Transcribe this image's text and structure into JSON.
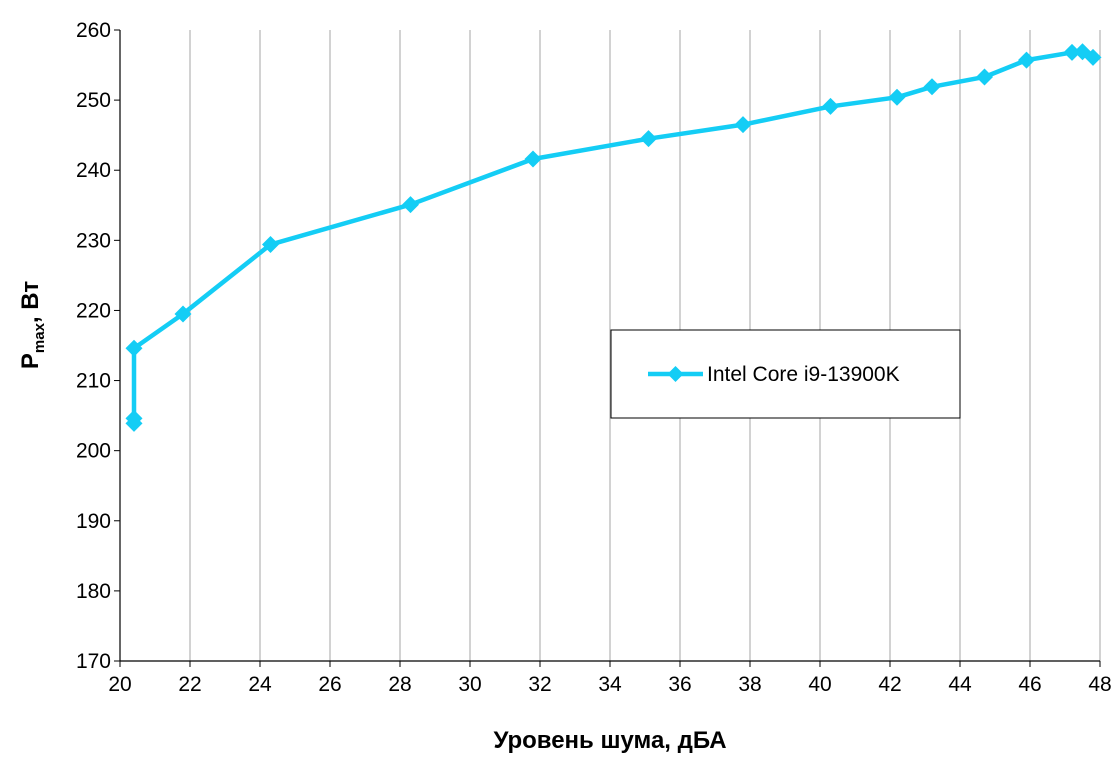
{
  "chart_data": {
    "type": "line",
    "title": "",
    "xlabel": "Уровень шума, дБА",
    "ylabel": {
      "main": "P",
      "subscript": "max",
      "suffix": ", Вт"
    },
    "xlim": [
      20,
      48
    ],
    "ylim": [
      170,
      260
    ],
    "xticks": [
      20,
      22,
      24,
      26,
      28,
      30,
      32,
      34,
      36,
      38,
      40,
      42,
      44,
      46,
      48
    ],
    "yticks": [
      170,
      180,
      190,
      200,
      210,
      220,
      230,
      240,
      250,
      260
    ],
    "grid": "vertical",
    "legend_position": "center-right",
    "series": [
      {
        "name": "Intel Core i9-13900K",
        "color": "#14cdf5",
        "marker": "diamond",
        "points": [
          [
            20.4,
            203.9
          ],
          [
            20.4,
            204.6
          ],
          [
            20.4,
            214.6
          ],
          [
            21.8,
            219.5
          ],
          [
            24.3,
            229.4
          ],
          [
            28.3,
            235.1
          ],
          [
            31.8,
            241.6
          ],
          [
            35.1,
            244.5
          ],
          [
            37.8,
            246.5
          ],
          [
            40.3,
            249.1
          ],
          [
            42.2,
            250.4
          ],
          [
            43.2,
            251.9
          ],
          [
            44.7,
            253.3
          ],
          [
            45.9,
            255.7
          ],
          [
            47.2,
            256.8
          ],
          [
            47.5,
            256.9
          ],
          [
            47.8,
            256.1
          ]
        ]
      }
    ]
  }
}
